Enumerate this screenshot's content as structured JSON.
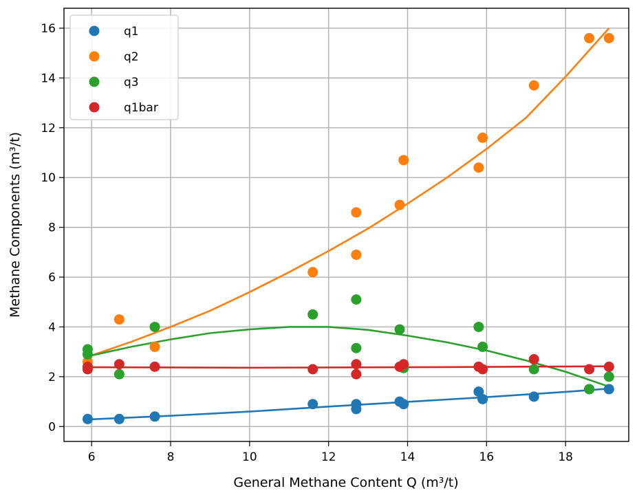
{
  "chart_data": {
    "type": "scatter",
    "title": "",
    "xlabel": "General Methane Content Q (m³/t)",
    "ylabel": "Methane Components (m³/t)",
    "xlim": [
      5.3,
      19.6
    ],
    "ylim": [
      -0.6,
      16.8
    ],
    "x_ticks": [
      6,
      8,
      10,
      12,
      14,
      16,
      18
    ],
    "y_ticks": [
      0,
      2,
      4,
      6,
      8,
      10,
      12,
      14,
      16
    ],
    "grid": true,
    "legend_position": "top-left",
    "series": [
      {
        "name": "q1",
        "color": "#1f77b4",
        "points": [
          [
            5.9,
            0.3
          ],
          [
            6.7,
            0.3
          ],
          [
            7.6,
            0.4
          ],
          [
            11.6,
            0.9
          ],
          [
            12.7,
            0.9
          ],
          [
            12.7,
            0.7
          ],
          [
            13.8,
            1.0
          ],
          [
            13.9,
            0.9
          ],
          [
            15.8,
            1.4
          ],
          [
            15.9,
            1.1
          ],
          [
            17.2,
            1.2
          ],
          [
            18.6,
            1.5
          ],
          [
            19.1,
            1.5
          ]
        ],
        "fit": [
          [
            5.9,
            0.28
          ],
          [
            8,
            0.43
          ],
          [
            10,
            0.6
          ],
          [
            12,
            0.8
          ],
          [
            14,
            0.99
          ],
          [
            16,
            1.18
          ],
          [
            18,
            1.39
          ],
          [
            19.1,
            1.52
          ]
        ]
      },
      {
        "name": "q2",
        "color": "#ff7f0e",
        "points": [
          [
            5.9,
            2.6
          ],
          [
            6.7,
            4.3
          ],
          [
            7.6,
            3.2
          ],
          [
            11.6,
            6.2
          ],
          [
            12.7,
            8.6
          ],
          [
            12.7,
            6.9
          ],
          [
            13.8,
            8.9
          ],
          [
            13.9,
            10.7
          ],
          [
            15.8,
            10.4
          ],
          [
            15.9,
            11.6
          ],
          [
            17.2,
            13.7
          ],
          [
            18.6,
            15.6
          ],
          [
            19.1,
            15.6
          ]
        ],
        "fit": [
          [
            5.9,
            2.8
          ],
          [
            7,
            3.4
          ],
          [
            8,
            4.0
          ],
          [
            9,
            4.65
          ],
          [
            10,
            5.4
          ],
          [
            11,
            6.2
          ],
          [
            12,
            7.05
          ],
          [
            13,
            7.95
          ],
          [
            14,
            8.95
          ],
          [
            15,
            10.0
          ],
          [
            16,
            11.15
          ],
          [
            17,
            12.4
          ],
          [
            18,
            14.05
          ],
          [
            19.1,
            16.0
          ]
        ]
      },
      {
        "name": "q3",
        "color": "#2ca02c",
        "points": [
          [
            5.9,
            3.1
          ],
          [
            5.9,
            2.9
          ],
          [
            6.7,
            2.1
          ],
          [
            7.6,
            4.0
          ],
          [
            11.6,
            4.5
          ],
          [
            12.7,
            5.1
          ],
          [
            12.7,
            3.15
          ],
          [
            13.8,
            3.9
          ],
          [
            13.9,
            2.35
          ],
          [
            15.8,
            4.0
          ],
          [
            15.9,
            3.2
          ],
          [
            17.2,
            2.3
          ],
          [
            18.6,
            1.5
          ],
          [
            19.1,
            2.0
          ]
        ],
        "fit": [
          [
            5.9,
            2.82
          ],
          [
            7,
            3.2
          ],
          [
            8,
            3.5
          ],
          [
            9,
            3.75
          ],
          [
            10,
            3.9
          ],
          [
            11,
            4.0
          ],
          [
            12,
            4.0
          ],
          [
            13,
            3.88
          ],
          [
            14,
            3.65
          ],
          [
            15,
            3.38
          ],
          [
            16,
            3.05
          ],
          [
            17,
            2.65
          ],
          [
            18,
            2.2
          ],
          [
            19.1,
            1.6
          ]
        ]
      },
      {
        "name": "q1bar",
        "color": "#d62728",
        "points": [
          [
            5.9,
            2.4
          ],
          [
            5.9,
            2.3
          ],
          [
            6.7,
            2.5
          ],
          [
            7.6,
            2.4
          ],
          [
            11.6,
            2.3
          ],
          [
            12.7,
            2.5
          ],
          [
            12.7,
            2.1
          ],
          [
            13.8,
            2.4
          ],
          [
            13.9,
            2.5
          ],
          [
            15.8,
            2.4
          ],
          [
            15.9,
            2.3
          ],
          [
            17.2,
            2.7
          ],
          [
            18.6,
            2.3
          ],
          [
            19.1,
            2.4
          ]
        ],
        "fit": [
          [
            5.9,
            2.38
          ],
          [
            10,
            2.36
          ],
          [
            14,
            2.38
          ],
          [
            19.1,
            2.42
          ]
        ]
      }
    ]
  }
}
